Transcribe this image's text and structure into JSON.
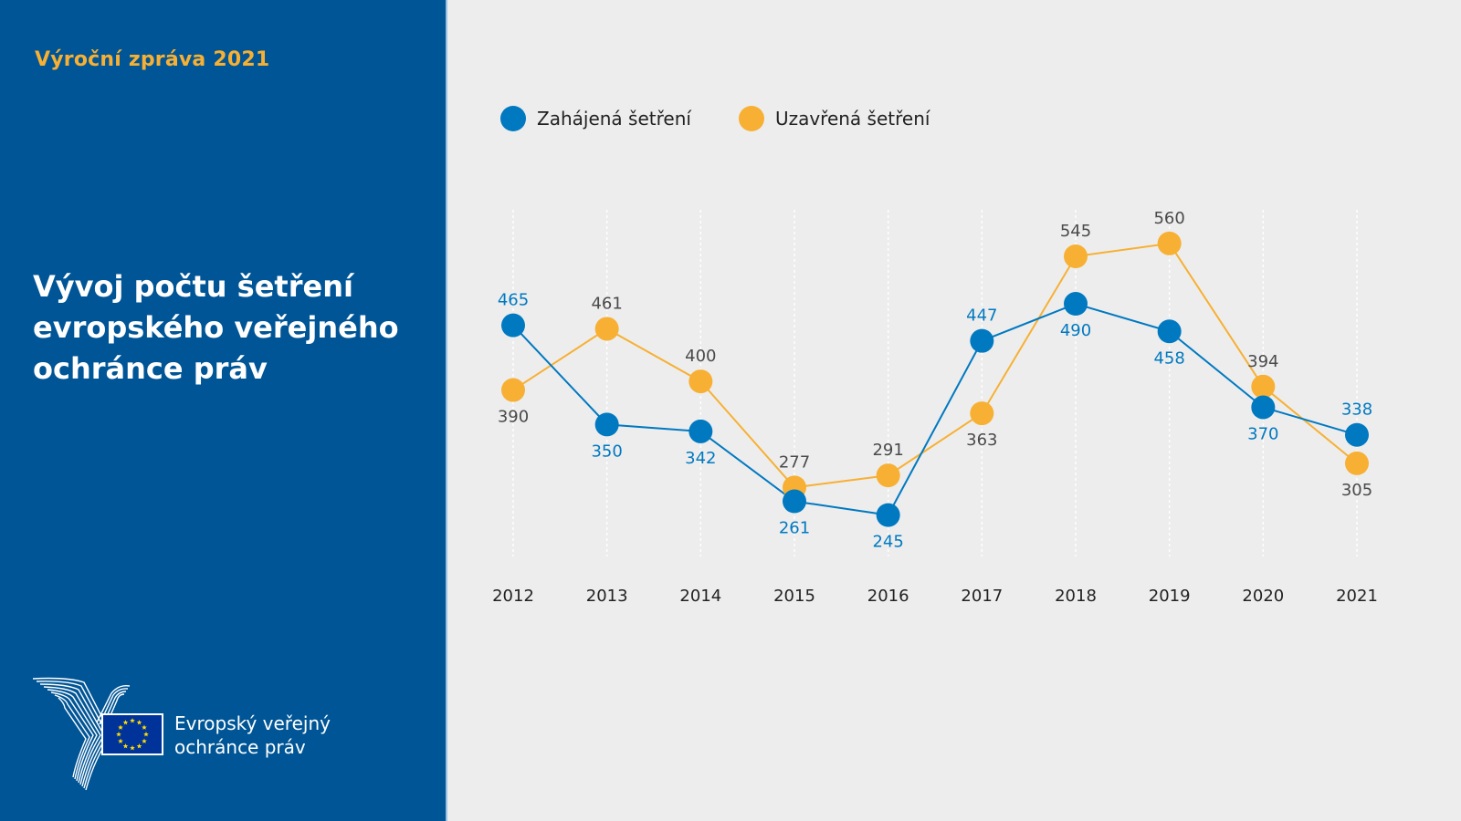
{
  "sidebar": {
    "report_label": "Výroční zpráva 2021",
    "title": "Vývoj počtu šetření evropského veřejného ochránce práv",
    "logo": {
      "icon": "european-ombudsman-logo",
      "flag_icon": "eu-flag-icon",
      "line1": "Evropský veřejný",
      "line2": "ochránce práv"
    }
  },
  "colors": {
    "sidebar_bg": "#005596",
    "accent_yellow": "#f7b033",
    "series_opened": "#0079c1",
    "series_closed": "#f7b033",
    "closed_label": "#4a4a4a",
    "background": "#ededed"
  },
  "chart_data": {
    "type": "line",
    "title": "Vývoj počtu šetření evropského veřejného ochránce práv",
    "xlabel": "",
    "ylabel": "",
    "categories": [
      "2012",
      "2013",
      "2014",
      "2015",
      "2016",
      "2017",
      "2018",
      "2019",
      "2020",
      "2021"
    ],
    "series": [
      {
        "name": "Zahájená šetření",
        "color": "#0079c1",
        "values": [
          465,
          350,
          342,
          261,
          245,
          447,
          490,
          458,
          370,
          338
        ],
        "label_positions": [
          "above",
          "below",
          "below",
          "below",
          "below",
          "above",
          "below",
          "below",
          "below",
          "above"
        ]
      },
      {
        "name": "Uzavřená šetření",
        "color": "#f7b033",
        "values": [
          390,
          461,
          400,
          277,
          291,
          363,
          545,
          560,
          394,
          305
        ],
        "label_positions": [
          "below",
          "above",
          "above",
          "above",
          "above",
          "below",
          "above",
          "above",
          "above",
          "below"
        ]
      }
    ],
    "ylim": [
      197,
      599
    ],
    "grid": "vertical-dashed",
    "legend": "top-left",
    "y_axis_visible": false
  }
}
